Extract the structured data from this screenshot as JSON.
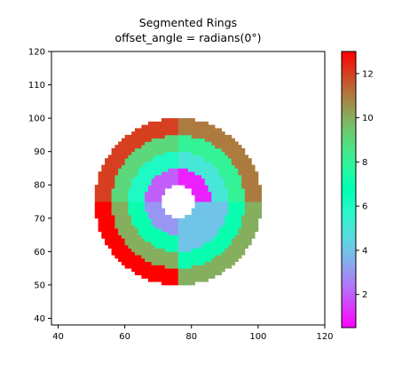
{
  "chart_data": {
    "type": "heatmap",
    "title": "Segmented Rings",
    "subtitle": "offset_angle = radians(0°)",
    "xlabel": "",
    "ylabel": "",
    "xlim": [
      38,
      120
    ],
    "ylim": [
      38,
      120
    ],
    "xticks": [
      40,
      60,
      80,
      100,
      120
    ],
    "yticks": [
      40,
      50,
      60,
      70,
      80,
      90,
      100,
      110,
      120
    ],
    "center": [
      76,
      75
    ],
    "rings": [
      {
        "inner_radius": 5,
        "outer_radius": 10,
        "segment_values": [
          1,
          2,
          3,
          4
        ]
      },
      {
        "inner_radius": 10,
        "outer_radius": 15,
        "segment_values": [
          5,
          6,
          7,
          4
        ]
      },
      {
        "inner_radius": 15,
        "outer_radius": 20,
        "segment_values": [
          8,
          9,
          10,
          7
        ]
      },
      {
        "inner_radius": 20,
        "outer_radius": 25,
        "segment_values": [
          11,
          12,
          13,
          10
        ]
      }
    ],
    "segment_order": "counter-clockwise from 0° (upper-right, upper-left, lower-left, lower-right)",
    "offset_angle_deg": 0,
    "colorbar": {
      "colormap": "rainbow",
      "vmin": 0.5,
      "vmax": 13,
      "ticks": [
        2,
        4,
        6,
        8,
        10,
        12
      ]
    },
    "grid": false
  }
}
